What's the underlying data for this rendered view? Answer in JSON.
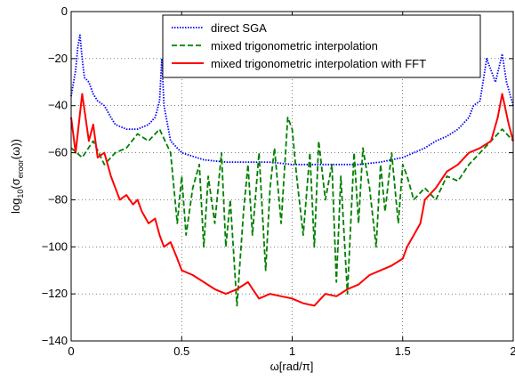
{
  "chart_data": {
    "type": "line",
    "xlabel": "ω[rad/π]",
    "ylabel_base": "log",
    "ylabel_sub1": "10",
    "ylabel_mid": "(σ",
    "ylabel_sub2": "eroor",
    "ylabel_end": "(ω))",
    "xlim": [
      0,
      2
    ],
    "ylim": [
      -140,
      0
    ],
    "x_ticks": [
      0,
      0.5,
      1,
      1.5,
      2
    ],
    "x_tick_labels": [
      "0",
      "0.5",
      "1",
      "1.5",
      "2"
    ],
    "y_ticks": [
      0,
      -20,
      -40,
      -60,
      -80,
      -100,
      -120,
      -140
    ],
    "y_tick_labels": [
      "0",
      "−20",
      "−40",
      "−60",
      "−80",
      "−100",
      "−120",
      "−140"
    ],
    "grid": true,
    "legend_position": "top-right",
    "series": [
      {
        "name": "direct SGA",
        "color": "#0000ff",
        "style": "dotted",
        "x": [
          0,
          0.02,
          0.03,
          0.04,
          0.05,
          0.06,
          0.08,
          0.1,
          0.12,
          0.15,
          0.18,
          0.2,
          0.25,
          0.3,
          0.35,
          0.38,
          0.4,
          0.41,
          0.42,
          0.45,
          0.5,
          0.6,
          0.7,
          0.8,
          0.9,
          1.0,
          1.1,
          1.2,
          1.3,
          1.4,
          1.5,
          1.55,
          1.6,
          1.65,
          1.7,
          1.75,
          1.8,
          1.82,
          1.85,
          1.88,
          1.9,
          1.92,
          1.95,
          1.97,
          2.0
        ],
        "y": [
          -36,
          -25,
          -15,
          -10,
          -20,
          -28,
          -30,
          -35,
          -38,
          -40,
          -45,
          -48,
          -50,
          -50,
          -48,
          -45,
          -38,
          -20,
          -40,
          -55,
          -60,
          -63,
          -64,
          -64,
          -64,
          -65,
          -65,
          -65,
          -65,
          -64,
          -62,
          -60,
          -58,
          -55,
          -53,
          -50,
          -45,
          -40,
          -38,
          -20,
          -25,
          -30,
          -18,
          -30,
          -40
        ]
      },
      {
        "name": "mixed trigonometric interpolation",
        "color": "#008000",
        "style": "dashed",
        "x": [
          0,
          0.05,
          0.1,
          0.15,
          0.2,
          0.25,
          0.3,
          0.35,
          0.4,
          0.45,
          0.48,
          0.5,
          0.52,
          0.55,
          0.58,
          0.6,
          0.62,
          0.65,
          0.68,
          0.7,
          0.72,
          0.75,
          0.78,
          0.8,
          0.82,
          0.85,
          0.88,
          0.9,
          0.92,
          0.95,
          0.98,
          1.0,
          1.02,
          1.05,
          1.08,
          1.1,
          1.12,
          1.15,
          1.18,
          1.2,
          1.22,
          1.25,
          1.28,
          1.3,
          1.32,
          1.35,
          1.38,
          1.4,
          1.42,
          1.45,
          1.48,
          1.5,
          1.52,
          1.55,
          1.6,
          1.65,
          1.7,
          1.75,
          1.8,
          1.85,
          1.9,
          1.95,
          2.0
        ],
        "y": [
          -58,
          -62,
          -55,
          -65,
          -60,
          -58,
          -52,
          -55,
          -50,
          -60,
          -90,
          -70,
          -95,
          -75,
          -65,
          -100,
          -70,
          -90,
          -60,
          -100,
          -80,
          -125,
          -85,
          -65,
          -95,
          -60,
          -110,
          -75,
          -58,
          -90,
          -45,
          -50,
          -70,
          -95,
          -60,
          -100,
          -55,
          -80,
          -65,
          -115,
          -70,
          -120,
          -60,
          -90,
          -58,
          -75,
          -100,
          -65,
          -85,
          -60,
          -90,
          -65,
          -70,
          -80,
          -75,
          -80,
          -70,
          -72,
          -65,
          -60,
          -55,
          -50,
          -55
        ]
      },
      {
        "name": "mixed trigonometric interpolation with FFT",
        "color": "#ff0000",
        "style": "solid",
        "x": [
          0,
          0.02,
          0.05,
          0.08,
          0.1,
          0.12,
          0.15,
          0.18,
          0.2,
          0.22,
          0.25,
          0.28,
          0.3,
          0.32,
          0.35,
          0.38,
          0.4,
          0.42,
          0.45,
          0.48,
          0.5,
          0.55,
          0.6,
          0.65,
          0.7,
          0.75,
          0.8,
          0.85,
          0.9,
          0.95,
          1.0,
          1.05,
          1.1,
          1.15,
          1.2,
          1.25,
          1.3,
          1.35,
          1.4,
          1.45,
          1.5,
          1.52,
          1.55,
          1.58,
          1.6,
          1.65,
          1.7,
          1.75,
          1.8,
          1.85,
          1.9,
          1.93,
          1.95,
          1.98,
          2.0
        ],
        "y": [
          -45,
          -60,
          -35,
          -55,
          -48,
          -62,
          -60,
          -70,
          -75,
          -80,
          -78,
          -82,
          -80,
          -85,
          -90,
          -88,
          -95,
          -100,
          -98,
          -105,
          -110,
          -112,
          -115,
          -118,
          -120,
          -118,
          -115,
          -122,
          -120,
          -121,
          -122,
          -124,
          -125,
          -120,
          -121,
          -118,
          -116,
          -112,
          -110,
          -108,
          -105,
          -100,
          -95,
          -90,
          -80,
          -75,
          -68,
          -65,
          -60,
          -58,
          -55,
          -45,
          -35,
          -48,
          -55
        ]
      }
    ]
  }
}
